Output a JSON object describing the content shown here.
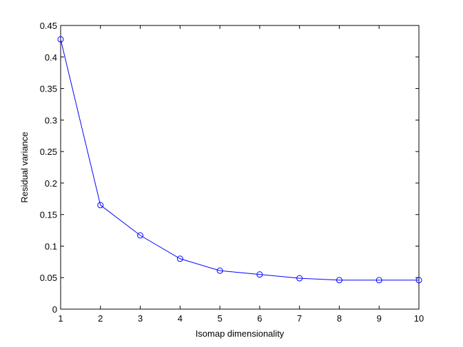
{
  "chart_data": {
    "type": "line",
    "xlabel": "Isomap dimensionality",
    "ylabel": "Residual variance",
    "x": [
      1,
      2,
      3,
      4,
      5,
      6,
      7,
      8,
      9,
      10
    ],
    "series": [
      {
        "color": "#0000ff",
        "marker": "circle",
        "values": [
          0.428,
          0.165,
          0.117,
          0.08,
          0.061,
          0.055,
          0.049,
          0.046,
          0.046,
          0.046
        ]
      }
    ],
    "xlim": [
      1,
      10
    ],
    "ylim": [
      0,
      0.45
    ],
    "xticks": [
      1,
      2,
      3,
      4,
      5,
      6,
      7,
      8,
      9,
      10
    ],
    "yticks": [
      0,
      0.05,
      0.1,
      0.15,
      0.2,
      0.25,
      0.3,
      0.35,
      0.4,
      0.45
    ],
    "grid": false
  }
}
